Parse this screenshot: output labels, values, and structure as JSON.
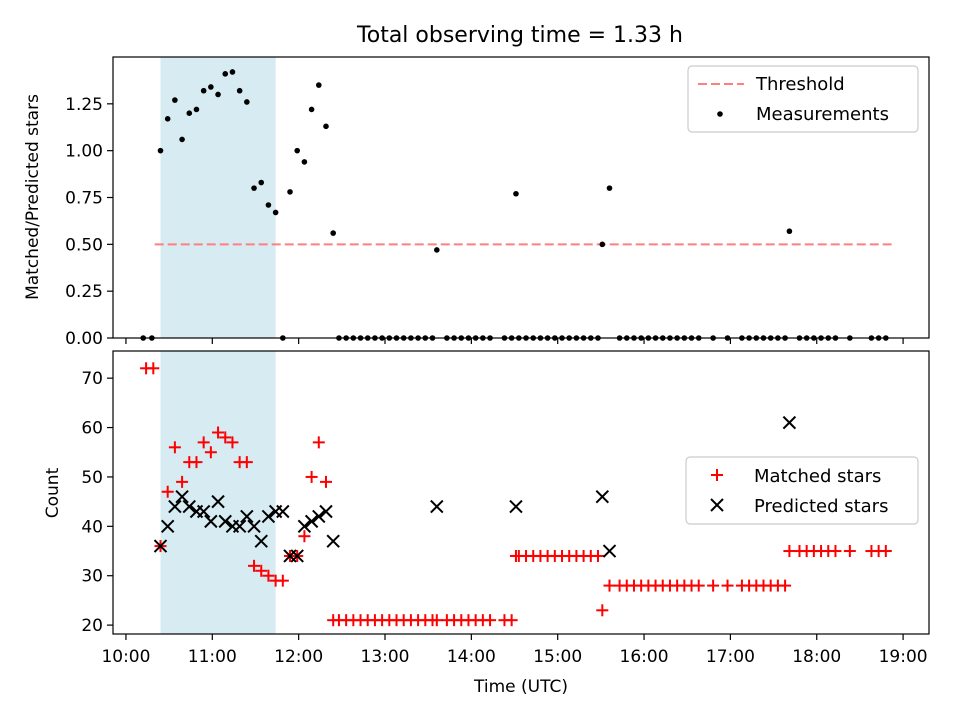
{
  "title": "Total observing time = 1.33 h",
  "chart_data": [
    {
      "type": "scatter",
      "ylabel": "Matched/Predicted stars",
      "ylim": [
        0.0,
        1.5
      ],
      "yticks": [
        "0.00",
        "0.25",
        "0.50",
        "0.75",
        "1.00",
        "1.25"
      ],
      "xlim": [
        "09:51",
        "19:18"
      ],
      "shaded_interval": [
        "10:24",
        "11:44"
      ],
      "threshold": {
        "label": "Threshold",
        "value": 0.5,
        "from": "10:20",
        "to": "18:52",
        "color": "#ff7f7f"
      },
      "legend": {
        "position": "top-right",
        "entries": [
          "Threshold",
          "Measurements"
        ]
      },
      "series": [
        {
          "name": "Measurements",
          "color": "#000000",
          "marker": "dot",
          "x": [
            "10:12",
            "10:18",
            "10:24",
            "10:29",
            "10:34",
            "10:39",
            "10:44",
            "10:49",
            "10:54",
            "10:59",
            "11:04",
            "11:09",
            "11:14",
            "11:19",
            "11:24",
            "11:29",
            "11:34",
            "11:39",
            "11:44",
            "11:49",
            "11:54",
            "11:59",
            "12:04",
            "12:09",
            "12:14",
            "12:19",
            "12:24",
            "13:36",
            "14:31",
            "15:31",
            "15:36",
            "17:41"
          ],
          "y": [
            0.0,
            0.0,
            1.0,
            1.17,
            1.27,
            1.06,
            1.2,
            1.22,
            1.32,
            1.34,
            1.3,
            1.41,
            1.42,
            1.32,
            1.26,
            0.8,
            0.83,
            0.71,
            0.67,
            0.0,
            0.78,
            1.0,
            0.94,
            1.22,
            1.35,
            1.13,
            0.56,
            0.47,
            0.77,
            0.5,
            0.8,
            0.57
          ]
        },
        {
          "name": "",
          "color": "#000000",
          "marker": "dot",
          "x": [
            "12:28",
            "12:33",
            "12:38",
            "12:43",
            "12:48",
            "12:53",
            "12:58",
            "13:03",
            "13:08",
            "13:13",
            "13:18",
            "13:23",
            "13:28",
            "13:33",
            "13:43",
            "13:48",
            "13:53",
            "13:58",
            "14:03",
            "14:08",
            "14:13",
            "14:23",
            "14:28",
            "14:33",
            "14:38",
            "14:43",
            "14:48",
            "14:53",
            "14:58",
            "15:03",
            "15:08",
            "15:13",
            "15:18",
            "15:23",
            "15:28",
            "15:43",
            "15:48",
            "15:53",
            "15:58",
            "16:03",
            "16:08",
            "16:13",
            "16:18",
            "16:23",
            "16:28",
            "16:33",
            "16:38",
            "16:48",
            "16:58",
            "17:08",
            "17:13",
            "17:18",
            "17:23",
            "17:28",
            "17:33",
            "17:38",
            "17:48",
            "17:53",
            "17:58",
            "18:03",
            "18:08",
            "18:13",
            "18:23",
            "18:38",
            "18:43",
            "18:48"
          ],
          "y": [
            0,
            0,
            0,
            0,
            0,
            0,
            0,
            0,
            0,
            0,
            0,
            0,
            0,
            0,
            0,
            0,
            0,
            0,
            0,
            0,
            0,
            0,
            0,
            0,
            0,
            0,
            0,
            0,
            0,
            0,
            0,
            0,
            0,
            0,
            0,
            0,
            0,
            0,
            0,
            0,
            0,
            0,
            0,
            0,
            0,
            0,
            0,
            0,
            0,
            0,
            0,
            0,
            0,
            0,
            0,
            0,
            0,
            0,
            0,
            0,
            0,
            0,
            0,
            0,
            0,
            0
          ]
        }
      ]
    },
    {
      "type": "scatter",
      "xlabel": "Time (UTC)",
      "ylabel": "Count",
      "ylim": [
        18.2,
        75.5
      ],
      "yticks": [
        "20",
        "30",
        "40",
        "50",
        "60",
        "70"
      ],
      "xlim": [
        "09:51",
        "19:18"
      ],
      "xticks": [
        "10:00",
        "11:00",
        "12:00",
        "13:00",
        "14:00",
        "15:00",
        "16:00",
        "17:00",
        "18:00",
        "19:00"
      ],
      "shaded_interval": [
        "10:24",
        "11:44"
      ],
      "legend": {
        "position": "right",
        "entries": [
          "Matched stars",
          "Predicted stars"
        ]
      },
      "series": [
        {
          "name": "Matched stars",
          "color": "#ff0000",
          "marker": "plus",
          "x": [
            "10:14",
            "10:19",
            "10:24",
            "10:29",
            "10:34",
            "10:39",
            "10:44",
            "10:49",
            "10:54",
            "10:59",
            "11:04",
            "11:09",
            "11:14",
            "11:19",
            "11:24",
            "11:29",
            "11:34",
            "11:39",
            "11:44",
            "11:49",
            "11:54",
            "11:59",
            "12:04",
            "12:09",
            "12:14",
            "12:19",
            "12:24",
            "13:36",
            "14:31",
            "15:31",
            "15:36",
            "17:41"
          ],
          "y": [
            72,
            72,
            36,
            47,
            56,
            49,
            53,
            53,
            57,
            55,
            59,
            58,
            57,
            53,
            53,
            32,
            31,
            30,
            29,
            29,
            34,
            34,
            38,
            50,
            57,
            49,
            21,
            21,
            34,
            23,
            28,
            35
          ]
        },
        {
          "name": "",
          "color": "#ff0000",
          "marker": "plus",
          "x": [
            "12:28",
            "12:33",
            "12:38",
            "12:43",
            "12:48",
            "12:53",
            "12:58",
            "13:03",
            "13:08",
            "13:13",
            "13:18",
            "13:23",
            "13:28",
            "13:33",
            "13:43",
            "13:48",
            "13:53",
            "13:58",
            "14:03",
            "14:08",
            "14:13",
            "14:23",
            "14:28",
            "14:33",
            "14:38",
            "14:43",
            "14:48",
            "14:53",
            "14:58",
            "15:03",
            "15:08",
            "15:13",
            "15:18",
            "15:23",
            "15:28",
            "15:43",
            "15:48",
            "15:53",
            "15:58",
            "16:03",
            "16:08",
            "16:13",
            "16:18",
            "16:23",
            "16:28",
            "16:33",
            "16:38",
            "16:48",
            "16:58",
            "17:08",
            "17:13",
            "17:18",
            "17:23",
            "17:28",
            "17:33",
            "17:38",
            "17:48",
            "17:53",
            "17:58",
            "18:03",
            "18:08",
            "18:13",
            "18:23",
            "18:38",
            "18:43",
            "18:48"
          ],
          "y": [
            21,
            21,
            21,
            21,
            21,
            21,
            21,
            21,
            21,
            21,
            21,
            21,
            21,
            21,
            21,
            21,
            21,
            21,
            21,
            21,
            21,
            21,
            21,
            34,
            34,
            34,
            34,
            34,
            34,
            34,
            34,
            34,
            34,
            34,
            34,
            28,
            28,
            28,
            28,
            28,
            28,
            28,
            28,
            28,
            28,
            28,
            28,
            28,
            28,
            28,
            28,
            28,
            28,
            28,
            28,
            28,
            35,
            35,
            35,
            35,
            35,
            35,
            35,
            35,
            35,
            35
          ]
        },
        {
          "name": "Predicted stars",
          "color": "#000000",
          "marker": "x",
          "x": [
            "10:24",
            "10:29",
            "10:34",
            "10:39",
            "10:44",
            "10:49",
            "10:54",
            "10:59",
            "11:04",
            "11:09",
            "11:14",
            "11:19",
            "11:24",
            "11:29",
            "11:34",
            "11:39",
            "11:44",
            "11:49",
            "11:54",
            "11:59",
            "12:04",
            "12:09",
            "12:14",
            "12:19",
            "12:24",
            "13:36",
            "14:31",
            "15:31",
            "15:36",
            "17:41"
          ],
          "y": [
            36,
            40,
            44,
            46,
            44,
            43,
            43,
            41,
            45,
            41,
            40,
            40,
            42,
            40,
            37,
            42,
            43,
            43,
            34,
            34,
            40,
            41,
            42,
            43,
            37,
            44,
            44,
            46,
            35,
            61
          ]
        }
      ]
    }
  ]
}
